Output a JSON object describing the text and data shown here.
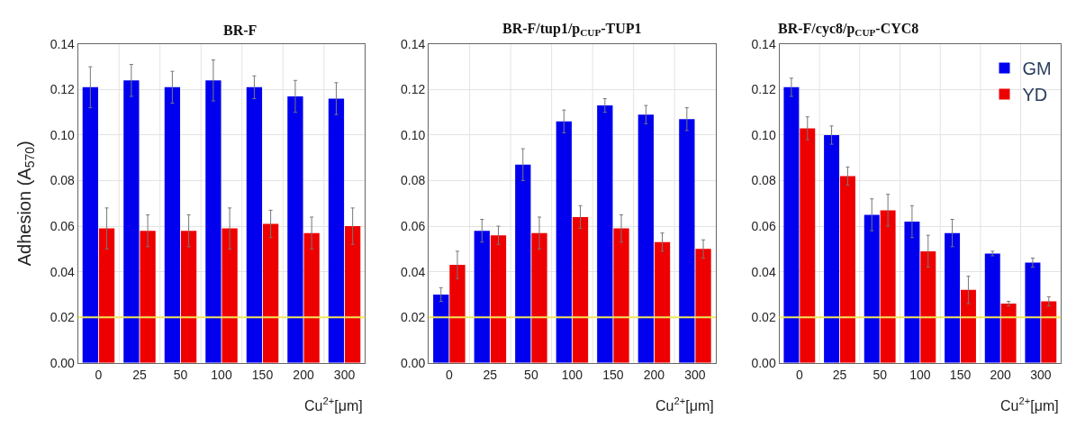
{
  "chart_data": [
    {
      "type": "bar",
      "title": "BR-F",
      "ylabel": "Adhesion (A$_{570}$)",
      "xlabel": "Cu$^{2+}$[μm]",
      "categories": [
        "0",
        "25",
        "50",
        "100",
        "150",
        "200",
        "300"
      ],
      "series": [
        {
          "color": "#0000ee",
          "values": [
            0.121,
            0.124,
            0.121,
            0.124,
            0.121,
            0.117,
            0.116
          ],
          "errors": [
            0.009,
            0.007,
            0.007,
            0.009,
            0.005,
            0.007,
            0.007
          ]
        },
        {
          "color": "#ee0000",
          "values": [
            0.059,
            0.058,
            0.058,
            0.059,
            0.061,
            0.057,
            0.06
          ],
          "errors": [
            0.009,
            0.007,
            0.007,
            0.009,
            0.006,
            0.007,
            0.008
          ]
        }
      ],
      "ylim": [
        0,
        0.14
      ],
      "yticks": [
        {
          "value": 0,
          "label": "0.00"
        },
        {
          "value": 0.02,
          "label": "0.02"
        },
        {
          "value": 0.04,
          "label": "0.04"
        },
        {
          "value": 0.06,
          "label": "0.06"
        },
        {
          "value": 0.08,
          "label": "0.08"
        },
        {
          "value": 0.1,
          "label": "0.10"
        },
        {
          "value": 0.12,
          "label": "0.12"
        },
        {
          "value": 0.14,
          "label": "0.14"
        }
      ],
      "ref_lines": [
        {
          "axis": "y",
          "value": 0.02,
          "color": "#f2e85a"
        }
      ],
      "grid": true,
      "legend": false
    },
    {
      "type": "bar",
      "title": "BR-F/tup1/p$_{CUP}$-TUP1",
      "xlabel": "Cu$^{2+}$[μm]",
      "categories": [
        "0",
        "25",
        "50",
        "100",
        "150",
        "200",
        "300"
      ],
      "series": [
        {
          "color": "#0000ee",
          "values": [
            0.03,
            0.058,
            0.087,
            0.106,
            0.113,
            0.109,
            0.107
          ],
          "errors": [
            0.003,
            0.005,
            0.007,
            0.005,
            0.003,
            0.004,
            0.005
          ]
        },
        {
          "color": "#ee0000",
          "values": [
            0.043,
            0.056,
            0.057,
            0.064,
            0.059,
            0.053,
            0.05
          ],
          "errors": [
            0.006,
            0.004,
            0.007,
            0.005,
            0.006,
            0.004,
            0.004
          ]
        }
      ],
      "ylim": [
        0,
        0.14
      ],
      "yticks": [
        {
          "value": 0,
          "label": "0.00"
        },
        {
          "value": 0.02,
          "label": "0.02"
        },
        {
          "value": 0.04,
          "label": "0.04"
        },
        {
          "value": 0.06,
          "label": "0.06"
        },
        {
          "value": 0.08,
          "label": "0.08"
        },
        {
          "value": 0.1,
          "label": "0.10"
        },
        {
          "value": 0.12,
          "label": "0.12"
        },
        {
          "value": 0.14,
          "label": "0.14"
        }
      ],
      "ref_lines": [
        {
          "axis": "y",
          "value": 0.02,
          "color": "#f2e85a"
        }
      ],
      "grid": true,
      "legend": false
    },
    {
      "type": "bar",
      "title": "BR-F/cyc8/p$_{CUP}$-CYC8",
      "xlabel": "Cu$^{2+}$[μm]",
      "categories": [
        "0",
        "25",
        "50",
        "100",
        "150",
        "200",
        "300"
      ],
      "series": [
        {
          "name": "GM",
          "color": "#0000ee",
          "values": [
            0.121,
            0.1,
            0.065,
            0.062,
            0.057,
            0.048,
            0.044
          ],
          "errors": [
            0.004,
            0.004,
            0.007,
            0.007,
            0.006,
            0.001,
            0.002
          ]
        },
        {
          "name": "YD",
          "color": "#ee0000",
          "values": [
            0.103,
            0.082,
            0.067,
            0.049,
            0.032,
            0.026,
            0.027
          ],
          "errors": [
            0.005,
            0.004,
            0.007,
            0.007,
            0.006,
            0.001,
            0.002
          ]
        }
      ],
      "ylim": [
        0,
        0.14
      ],
      "yticks": [
        {
          "value": 0,
          "label": "0.00"
        },
        {
          "value": 0.02,
          "label": "0.02"
        },
        {
          "value": 0.04,
          "label": "0.04"
        },
        {
          "value": 0.06,
          "label": "0.06"
        },
        {
          "value": 0.08,
          "label": "0.08"
        },
        {
          "value": 0.1,
          "label": "0.10"
        },
        {
          "value": 0.12,
          "label": "0.12"
        },
        {
          "value": 0.14,
          "label": "0.14"
        }
      ],
      "ref_lines": [
        {
          "axis": "y",
          "value": 0.02,
          "color": "#f2e85a"
        }
      ],
      "grid": true,
      "legend": "top right"
    }
  ]
}
